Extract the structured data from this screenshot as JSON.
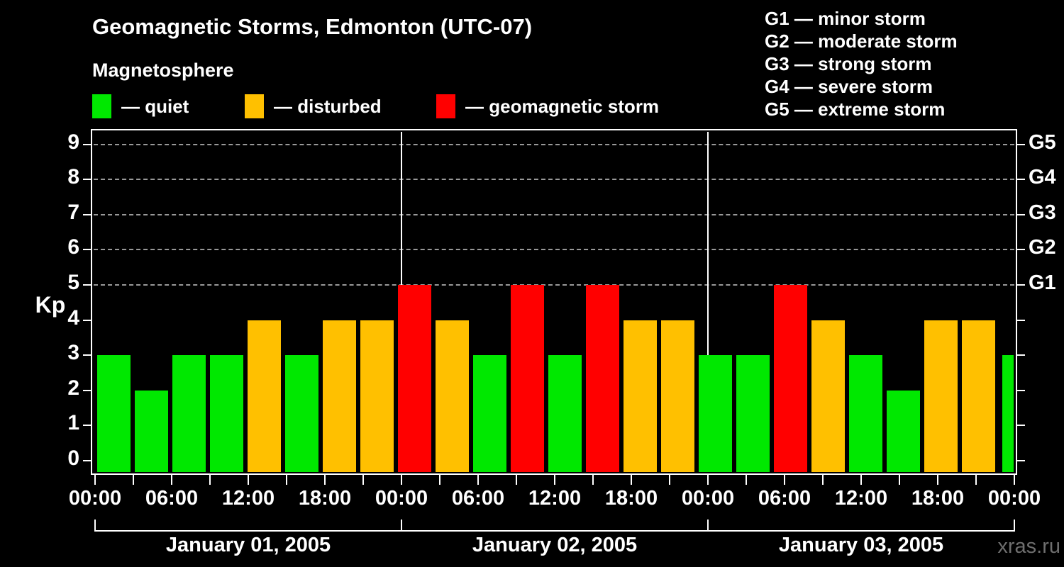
{
  "title": "Geomagnetic Storms, Edmonton (UTC-07)",
  "subtitle": "Magnetosphere",
  "legend": {
    "items": [
      {
        "key": "quiet",
        "label": "— quiet",
        "color": "#00e800"
      },
      {
        "key": "disturbed",
        "label": "— disturbed",
        "color": "#ffc000"
      },
      {
        "key": "storm",
        "label": "— geomagnetic storm",
        "color": "#ff0000"
      }
    ]
  },
  "g_scale_legend": [
    "G1 — minor storm",
    "G2 — moderate storm",
    "G3 — strong storm",
    "G4 — severe storm",
    "G5 — extreme storm"
  ],
  "watermark": "xras.ru",
  "chart_data": {
    "type": "bar",
    "title": "Geomagnetic Storms, Edmonton (UTC-07)",
    "ylabel": "Kp",
    "ylim": [
      0,
      9.5
    ],
    "y_tick_labels": [
      "0",
      "1",
      "2",
      "3",
      "4",
      "5",
      "6",
      "7",
      "8",
      "9"
    ],
    "gridlines_at_kp": [
      5,
      6,
      7,
      8,
      9
    ],
    "grid": "horizontal dashed at G-storm levels only",
    "legend_position": "top",
    "right_axis": {
      "labels": [
        "G1",
        "G2",
        "G3",
        "G4",
        "G5"
      ],
      "at_kp": [
        5,
        6,
        7,
        8,
        9
      ]
    },
    "x_tick_labels": [
      "00:00",
      "06:00",
      "12:00",
      "18:00",
      "00:00",
      "06:00",
      "12:00",
      "18:00",
      "00:00",
      "06:00",
      "12:00",
      "18:00",
      "00:00"
    ],
    "hours_per_bar": 3,
    "days": [
      {
        "label": "January 01, 2005",
        "values": [
          3,
          2,
          3,
          3,
          4,
          3,
          4,
          4
        ]
      },
      {
        "label": "January 02, 2005",
        "values": [
          5,
          4,
          3,
          5,
          3,
          5,
          4,
          4
        ]
      },
      {
        "label": "January 03, 2005",
        "values": [
          3,
          3,
          5,
          4,
          3,
          2,
          4,
          4
        ]
      }
    ],
    "partial_next_bar_kp": 3,
    "colors": {
      "quiet": "#00e800",
      "disturbed": "#ffc000",
      "storm": "#ff0000"
    },
    "color_rule": {
      "quiet_kp_max": 3,
      "disturbed_kp": 4,
      "storm_kp_min": 5
    }
  }
}
